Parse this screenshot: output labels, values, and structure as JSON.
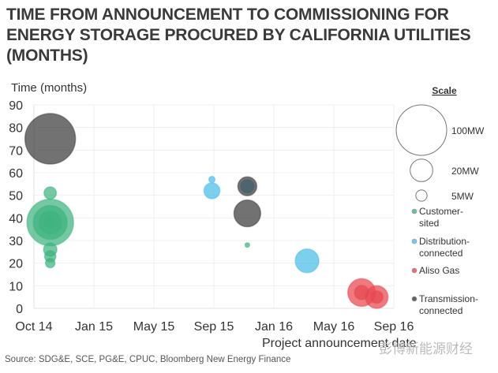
{
  "title": "TIME FROM ANNOUNCEMENT TO COMMISSIONING FOR ENERGY STORAGE PROCURED BY CALIFORNIA UTILITIES (MONTHS)",
  "source": "Source: SDG&E, SCE, PG&E, CPUC, Bloomberg New Energy Finance",
  "watermark": "彭博新能源财经",
  "chart_data": {
    "type": "scatter",
    "subtype": "bubble",
    "xlabel": "Project announcement date",
    "ylabel": "Time (months)",
    "ylim": [
      0,
      90
    ],
    "yticks": [
      0,
      10,
      20,
      30,
      40,
      50,
      60,
      70,
      80,
      90
    ],
    "xticks": [
      {
        "label": "Oct 14",
        "date": "2014-10-01"
      },
      {
        "label": "Jan 15",
        "date": "2015-01-01"
      },
      {
        "label": "May 15",
        "date": "2015-05-01"
      },
      {
        "label": "Sep 15",
        "date": "2015-09-01"
      },
      {
        "label": "Jan 16",
        "date": "2016-01-01"
      },
      {
        "label": "May 16",
        "date": "2016-05-01"
      },
      {
        "label": "Sep 16",
        "date": "2016-09-01"
      }
    ],
    "grid": true,
    "size_legend": {
      "title": "Scale",
      "items": [
        {
          "label": "100MW",
          "mw": 100
        },
        {
          "label": "20MW",
          "mw": 20
        },
        {
          "label": "5MW",
          "mw": 5
        }
      ]
    },
    "series": [
      {
        "name": "Customer-sited",
        "color": "#3fb37f",
        "points": [
          {
            "date": "2014-10-26",
            "months": 38,
            "mw": 85
          },
          {
            "date": "2014-10-26",
            "months": 38,
            "mw": 45
          },
          {
            "date": "2014-10-26",
            "months": 38,
            "mw": 20
          },
          {
            "date": "2014-10-26",
            "months": 38,
            "mw": 5
          },
          {
            "date": "2014-10-26",
            "months": 51,
            "mw": 6
          },
          {
            "date": "2014-10-26",
            "months": 26,
            "mw": 7
          },
          {
            "date": "2014-10-26",
            "months": 23,
            "mw": 5
          },
          {
            "date": "2014-10-26",
            "months": 20,
            "mw": 3.5
          },
          {
            "date": "2015-11-08",
            "months": 28,
            "mw": 0.8
          }
        ]
      },
      {
        "name": "Distribution-connected",
        "color": "#4bbde8",
        "points": [
          {
            "date": "2015-08-28",
            "months": 57,
            "mw": 1.5
          },
          {
            "date": "2015-08-28",
            "months": 52,
            "mw": 10
          },
          {
            "date": "2015-11-08",
            "months": 54,
            "mw": 7
          },
          {
            "date": "2016-03-08",
            "months": 21,
            "mw": 22
          }
        ]
      },
      {
        "name": "Aliso Gas",
        "color": "#e8474f",
        "points": [
          {
            "date": "2016-06-27",
            "months": 7,
            "mw": 30
          },
          {
            "date": "2016-06-27",
            "months": 7,
            "mw": 8
          },
          {
            "date": "2016-07-28",
            "months": 5,
            "mw": 20
          },
          {
            "date": "2016-07-28",
            "months": 5,
            "mw": 6
          }
        ]
      },
      {
        "name": "Transmission-connected",
        "color": "#3b3b3d",
        "points": [
          {
            "date": "2014-10-26",
            "months": 75,
            "mw": 100
          },
          {
            "date": "2015-11-08",
            "months": 54,
            "mw": 14
          },
          {
            "date": "2015-11-08",
            "months": 42,
            "mw": 28
          }
        ]
      }
    ]
  }
}
